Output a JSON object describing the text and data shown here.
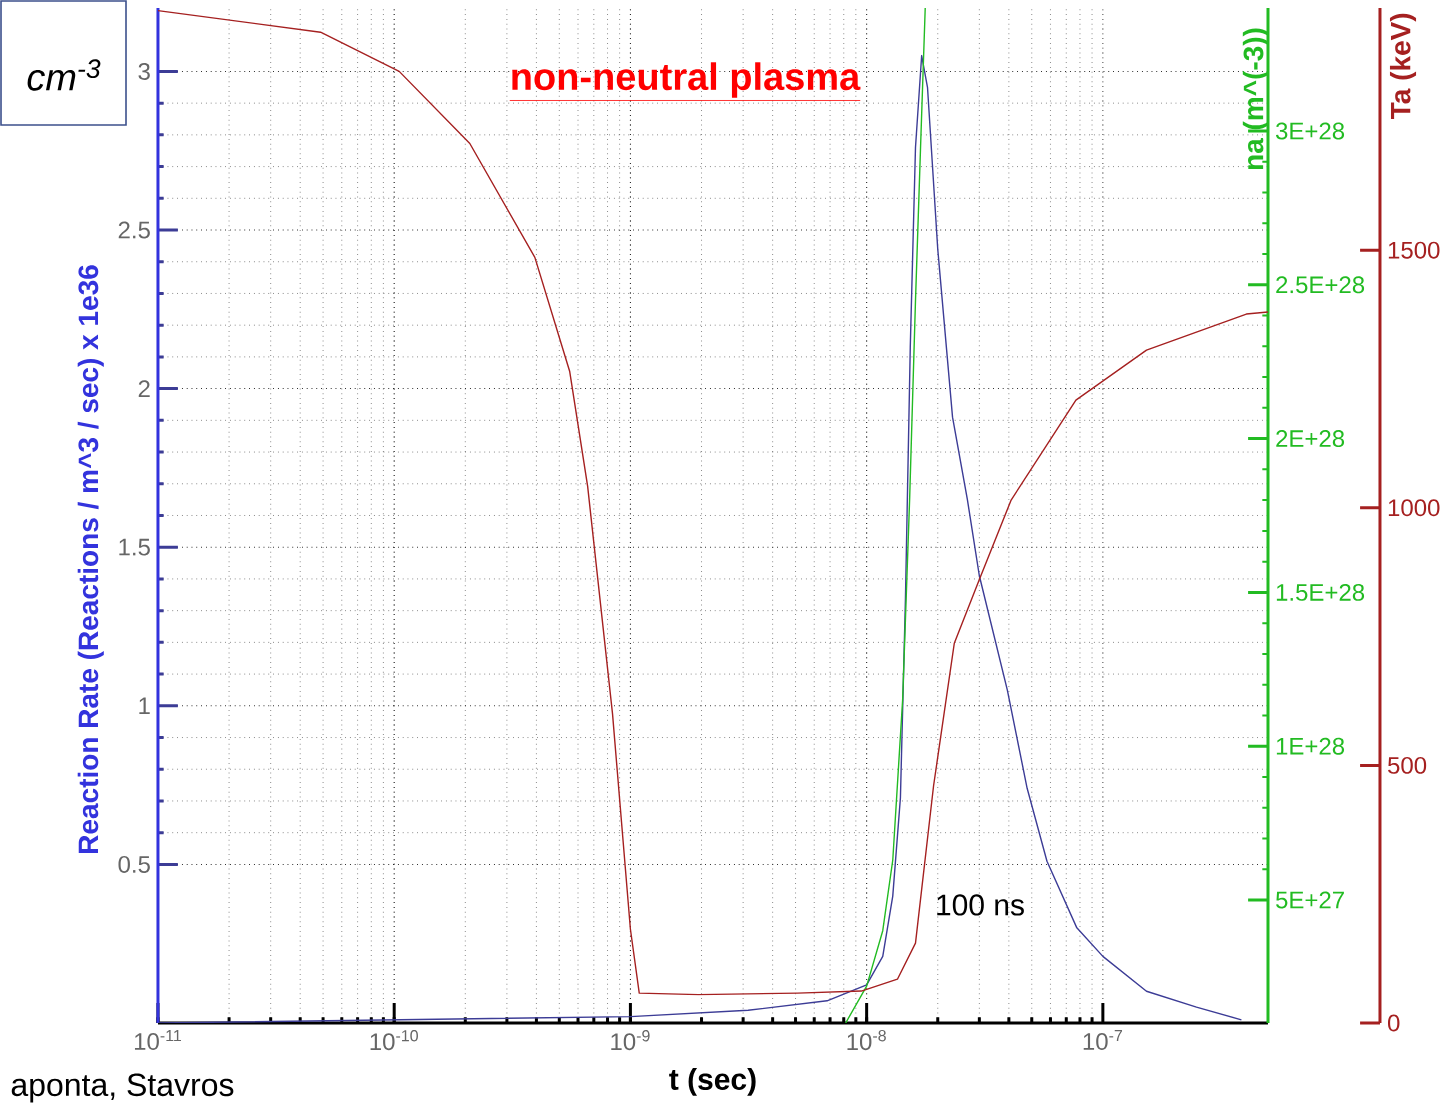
{
  "chart_data": {
    "type": "line",
    "log": "x",
    "grid": true,
    "xlabel": "t (sec)",
    "ylabel": "Reaction Rate (Reactions / m^3 / sec) x 1e36",
    "y2label": "na (m^(-3))",
    "y3label": "Ta (keV)",
    "xlim": [
      1e-11,
      5e-07
    ],
    "xticks": [
      {
        "value": 1e-11,
        "label": "10$^{-11}$"
      },
      {
        "value": 1e-10,
        "label": "10$^{-10}$"
      },
      {
        "value": 1e-09,
        "label": "10$^{-9}$"
      },
      {
        "value": 1e-08,
        "label": "10$^{-8}$"
      },
      {
        "value": 1e-07,
        "label": "10$^{-7}$"
      }
    ],
    "ylim": [
      0,
      3.2
    ],
    "yticks": [
      0.5,
      1,
      1.5,
      2,
      2.5,
      3
    ],
    "y2lim": [
      1e+27,
      3.4e+28
    ],
    "y2ticks": [
      {
        "value": 5e+27,
        "label": "5E+27"
      },
      {
        "value": 1e+28,
        "label": "1E+28"
      },
      {
        "value": 1.5e+28,
        "label": "1.5E+28"
      },
      {
        "value": 2e+28,
        "label": "2E+28"
      },
      {
        "value": 2.5e+28,
        "label": "2.5E+28"
      },
      {
        "value": 3e+28,
        "label": "3E+28"
      }
    ],
    "y3lim": [
      0,
      1970
    ],
    "y3ticks": [
      0,
      500,
      1000,
      1500
    ],
    "series": [
      {
        "color": "#3c3c96",
        "axis": "y",
        "x": [
          1e-11,
          1e-09,
          3.15e-09,
          6.8e-09,
          1e-08,
          1.17e-08,
          1.29e-08,
          1.39e-08,
          1.46e-08,
          1.53e-08,
          1.61e-08,
          1.71e-08,
          1.81e-08,
          2e-08,
          2.31e-08,
          2.67e-08,
          3e-08,
          3.94e-08,
          4.78e-08,
          5.8e-08,
          7.76e-08,
          1e-07,
          1.53e-07,
          2.49e-07,
          3.86e-07
        ],
        "values": [
          0,
          0.02,
          0.04,
          0.07,
          0.12,
          0.21,
          0.4,
          0.71,
          1.34,
          2.13,
          2.76,
          3.05,
          2.95,
          2.44,
          1.91,
          1.65,
          1.41,
          1.05,
          0.74,
          0.51,
          0.3,
          0.21,
          0.1,
          0.05,
          0.01
        ]
      },
      {
        "color": "#22bb22",
        "axis": "y2",
        "x": [
          8.15e-09,
          1e-08,
          1.17e-08,
          1.29e-08,
          1.42e-08,
          1.52e-08,
          1.61e-08,
          1.69e-08,
          1.77e-08
        ],
        "values": [
          1e+27,
          2.2e+27,
          4e+27,
          6.3e+27,
          1.15e+28,
          1.8e+28,
          2.45e+28,
          2.94e+28,
          3.4e+28
        ]
      },
      {
        "color": "#a52020",
        "axis": "y3",
        "x": [
          1e-11,
          4.88e-11,
          1.05e-10,
          2.09e-10,
          3.94e-10,
          5.53e-10,
          6.59e-10,
          8.4e-10,
          1e-09,
          1.09e-09,
          1.94e-09,
          5.1e-09,
          9.5e-09,
          1.35e-08,
          1.61e-08,
          1.92e-08,
          2.35e-08,
          3e-08,
          4.09e-08,
          7.69e-08,
          1.53e-07,
          4.05e-07,
          5e-07
        ],
        "values": [
          1965,
          1923,
          1847,
          1707,
          1486,
          1265,
          1042,
          600,
          182,
          58,
          55,
          58,
          62,
          85,
          155,
          460,
          737,
          861,
          1015,
          1209,
          1306,
          1376,
          1380
        ]
      }
    ],
    "annotations": [
      "non-neutral plasma",
      "100 ns",
      "cm$^{-3}$",
      "aponta, Stavros"
    ]
  }
}
